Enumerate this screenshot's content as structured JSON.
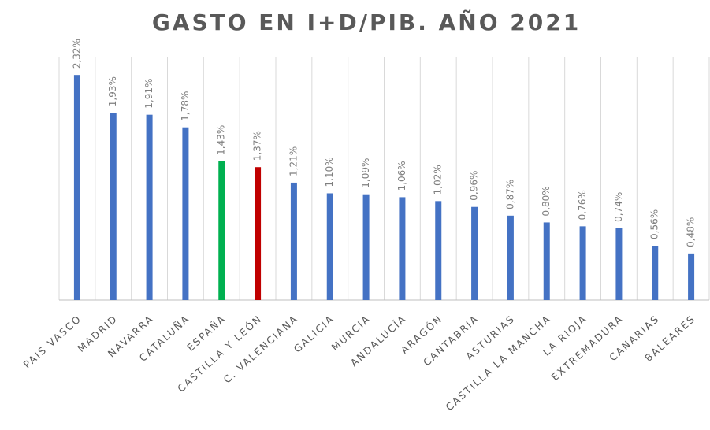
{
  "chart_data": {
    "type": "bar",
    "title": "GASTO  EN I+D/PIB.  AÑO 2021",
    "categories": [
      "PAIS VASCO",
      "MADRID",
      "NAVARRA",
      "CATALUÑA",
      "ESPAÑA",
      "CASTILLA Y LEÓN",
      "C. VALENCIANA",
      "GALICIA",
      "MURCIA",
      "ANDALUCÍA",
      "ARAGÓN",
      "CANTABRIA",
      "ASTURIAS",
      "CASTILLA LA MANCHA",
      "LA RIOJA",
      "EXTREMADURA",
      "CANARIAS",
      "BALEARES"
    ],
    "values": [
      2.32,
      1.93,
      1.91,
      1.78,
      1.43,
      1.37,
      1.21,
      1.1,
      1.09,
      1.06,
      1.02,
      0.96,
      0.87,
      0.8,
      0.76,
      0.74,
      0.56,
      0.48
    ],
    "value_labels": [
      "2,32%",
      "1,93%",
      "1,91%",
      "1,78%",
      "1,43%",
      "1,37%",
      "1,21%",
      "1,10%",
      "1,09%",
      "1,06%",
      "1,02%",
      "0,96%",
      "0,87%",
      "0,80%",
      "0,76%",
      "0,74%",
      "0,56%",
      "0,48%"
    ],
    "colors": [
      "#4472c4",
      "#4472c4",
      "#4472c4",
      "#4472c4",
      "#00b050",
      "#c00000",
      "#4472c4",
      "#4472c4",
      "#4472c4",
      "#4472c4",
      "#4472c4",
      "#4472c4",
      "#4472c4",
      "#4472c4",
      "#4472c4",
      "#4472c4",
      "#4472c4",
      "#4472c4"
    ],
    "ylim": [
      0,
      2.5
    ]
  }
}
